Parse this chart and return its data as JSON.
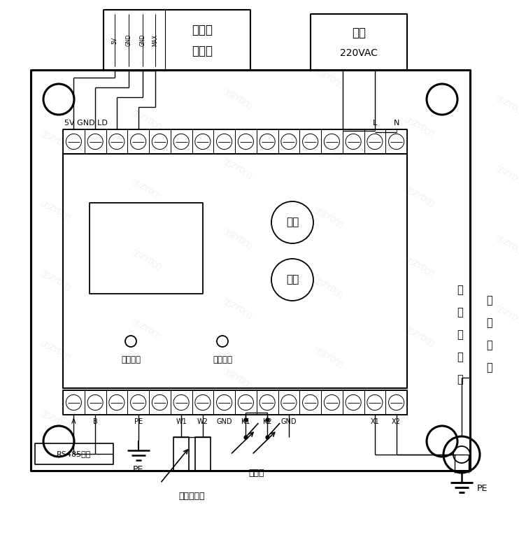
{
  "bg": "#ffffff",
  "fg": "#000000",
  "sensor_label1": "漏电流",
  "sensor_label2": "传感器",
  "sensor_pins": [
    "5V",
    "GND",
    "GND",
    "MAX"
  ],
  "power_label1": "市电",
  "power_label2": "220VAC",
  "btn_func": "功能",
  "btn_switch": "切换",
  "led_work": "工作指示",
  "led_alarm": "报警指示",
  "rs485": "RS485通讯",
  "pe_label": "PE",
  "temp_sensor": "温度传感器",
  "switch_label": "开关量",
  "fang_lei": [
    "防",
    "雷",
    "接",
    "地",
    "线"
  ],
  "hu_gan": [
    "互",
    "感",
    "线",
    "圈"
  ],
  "top_labels_text": "5V GND LD",
  "L_label": "L",
  "N_label": "N",
  "bot_labels": [
    "A",
    "B",
    "",
    "PE",
    "",
    "W1",
    "W2",
    "GND",
    "K1",
    "K2",
    "GND",
    "",
    "",
    "",
    "X1",
    "X2"
  ]
}
